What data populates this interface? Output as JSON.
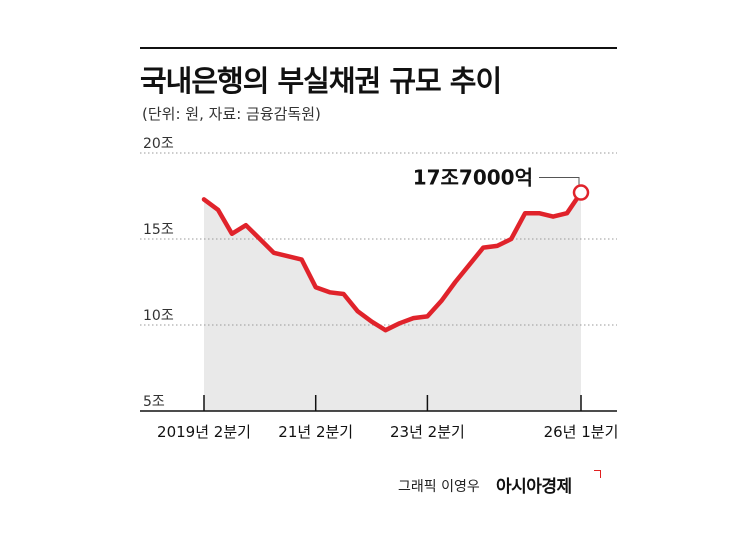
{
  "title": "국내은행의 부실채권 규모 추이",
  "subtitle": "(단위: 원, 자료: 금융감독원)",
  "credit": {
    "author": "그래픽 이영우",
    "brand": "아시아경제"
  },
  "chart_data": {
    "type": "area",
    "title": "국내은행의 부실채권 규모 추이",
    "xlabel": "",
    "ylabel": "",
    "ylim": [
      5,
      20
    ],
    "yticks": [
      {
        "value": 20,
        "label": "20조"
      },
      {
        "value": 15,
        "label": "15조"
      },
      {
        "value": 10,
        "label": "10조"
      },
      {
        "value": 5,
        "label": "5조"
      }
    ],
    "xticks": [
      {
        "index": 0,
        "label": "2019년 2분기"
      },
      {
        "index": 8,
        "label": "21년 2분기"
      },
      {
        "index": 16,
        "label": "23년 2분기"
      },
      {
        "index": 27,
        "label": "26년 1분기"
      }
    ],
    "grid": "horizontal-dotted",
    "colors": {
      "line": "#e0232b",
      "area": "#e9e9e9",
      "grid": "#999999"
    },
    "series": [
      {
        "values": [
          17.3,
          16.7,
          15.3,
          15.8,
          15.0,
          14.2,
          14.0,
          13.8,
          12.2,
          11.9,
          11.8,
          10.8,
          10.2,
          9.7,
          10.1,
          10.4,
          10.5,
          11.4,
          12.5,
          13.5,
          14.5,
          14.6,
          15.0,
          16.5,
          16.5,
          16.3,
          16.5,
          17.7
        ]
      }
    ],
    "annotation": {
      "index": 27,
      "value": 17.7,
      "label": "17조7000억"
    }
  }
}
